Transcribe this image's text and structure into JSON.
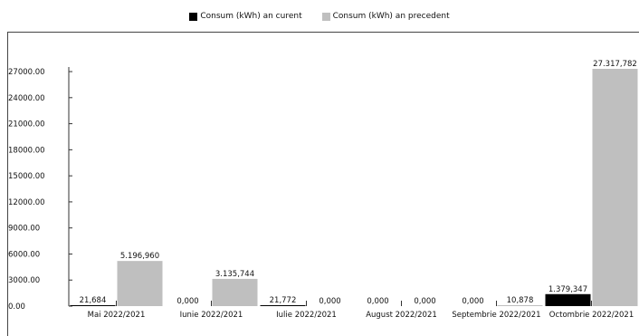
{
  "chart_data": {
    "type": "bar",
    "categories": [
      "Mai 2022/2021",
      "Iunie 2022/2021",
      "Iulie 2022/2021",
      "August 2022/2021",
      "Septembrie 2022/2021",
      "Octombrie 2022/2021"
    ],
    "series": [
      {
        "name": "Consum (kWh) an curent",
        "color": "#000000",
        "values": [
          21.684,
          0,
          21.772,
          0,
          0,
          1379.347
        ],
        "labels": [
          "21,684",
          "0,000",
          "21,772",
          "0,000",
          "0,000",
          "1.379,347"
        ]
      },
      {
        "name": "Consum (kWh) an precedent",
        "color": "#bfbfbf",
        "values": [
          5196.96,
          3135.744,
          0,
          0,
          10.878,
          27317.782
        ],
        "labels": [
          "5.196,960",
          "3.135,744",
          "0,000",
          "0,000",
          "10,878",
          "27.317,782"
        ]
      }
    ],
    "yticks": [
      0,
      3000,
      6000,
      9000,
      12000,
      15000,
      18000,
      21000,
      24000,
      27000
    ],
    "ytick_labels": [
      "0.00",
      "3000.00",
      "6000.00",
      "9000.00",
      "12000.00",
      "15000.00",
      "18000.00",
      "21000.00",
      "24000.00",
      "27000.00"
    ],
    "ylim": [
      0,
      27317.782
    ],
    "grid": false,
    "legend_position": "top-center",
    "title": "",
    "xlabel": "",
    "ylabel": ""
  }
}
